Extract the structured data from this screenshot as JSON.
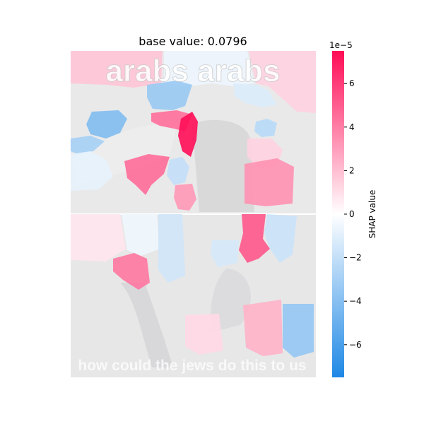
{
  "chart_data": {
    "type": "heatmap",
    "title": "base value: 0.0796",
    "image_caption_top": "arabs arabs",
    "image_caption_bottom": "how could the jews do this to us",
    "colorbar": {
      "label": "SHAP value",
      "exponent": "1e−5",
      "range": [
        -7.5,
        7.5
      ],
      "ticks": [
        6,
        4,
        2,
        0,
        -2,
        -4,
        -6
      ],
      "tick_labels": [
        "6",
        "4",
        "2",
        "0",
        "−2",
        "−4",
        "−6"
      ],
      "color_negative": "#1e88e5",
      "color_positive": "#ff0d57",
      "color_zero": "#ffffff"
    },
    "segments": [
      {
        "id": "top-left-arabs",
        "value": 1.8
      },
      {
        "id": "top-right-arabs",
        "value": -0.6
      },
      {
        "id": "top-bg-right-edge",
        "value": 1.4
      },
      {
        "id": "left-hair",
        "value": -4.2
      },
      {
        "id": "left-blue-upper",
        "value": -3.0
      },
      {
        "id": "left-wing",
        "value": -0.8
      },
      {
        "id": "top-blue-mid",
        "value": -3.4
      },
      {
        "id": "top-blue-right",
        "value": -1.2
      },
      {
        "id": "red-strip",
        "value": 4.5
      },
      {
        "id": "red-strong",
        "value": 7.5
      },
      {
        "id": "pink-mid-left",
        "value": 4.6
      },
      {
        "id": "blue-small-lower",
        "value": -2.0
      },
      {
        "id": "pink-small",
        "value": 3.2
      },
      {
        "id": "right-blue-small",
        "value": -2.4
      },
      {
        "id": "right-pink-head",
        "value": 1.4
      },
      {
        "id": "right-pink-big",
        "value": 3.4
      },
      {
        "id": "bottom-bg-left",
        "value": 0.8
      },
      {
        "id": "bottom-bg-mid",
        "value": -0.5
      },
      {
        "id": "bottom-blue-tall",
        "value": -1.6
      },
      {
        "id": "bottom-red",
        "value": 5.2
      },
      {
        "id": "bottom-blue-right",
        "value": -1.8
      },
      {
        "id": "bottom-pink-left",
        "value": 4.2
      },
      {
        "id": "bottom-blue-mid",
        "value": -1.4
      },
      {
        "id": "bottom-pink-right",
        "value": 2.4
      },
      {
        "id": "bottom-blue-strong",
        "value": -3.6
      },
      {
        "id": "bottom-pink-low",
        "value": 1.2
      }
    ]
  }
}
